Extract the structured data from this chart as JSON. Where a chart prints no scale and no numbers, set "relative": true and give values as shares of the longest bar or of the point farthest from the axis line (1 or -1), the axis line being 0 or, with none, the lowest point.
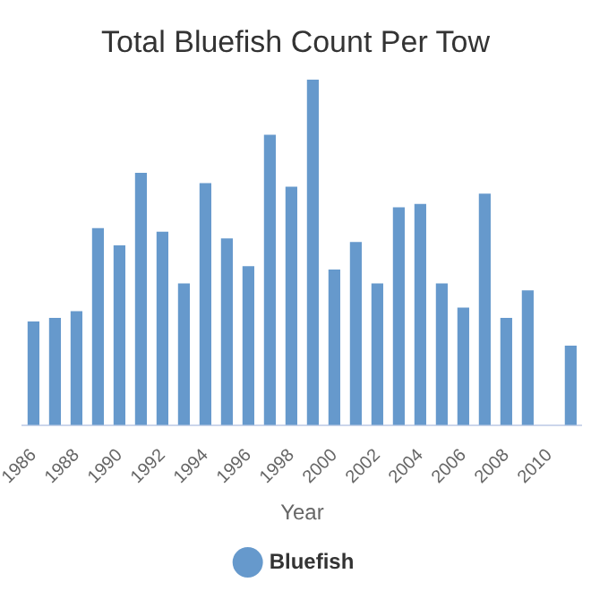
{
  "chart_data": {
    "type": "bar",
    "title": "Total Bluefish Count Per Tow",
    "xlabel": "Year",
    "relative": true,
    "categories": [
      "1986",
      null,
      "1988",
      null,
      "1990",
      null,
      "1992",
      null,
      "1994",
      null,
      "1996",
      null,
      "1998",
      null,
      "2000",
      null,
      "2002",
      null,
      "2004",
      null,
      "2006",
      null,
      "2008",
      null,
      "2010",
      null
    ],
    "series": [
      {
        "name": "Bluefish",
        "color": "#6699cc",
        "values": [
          0.3,
          0.31,
          0.33,
          0.57,
          0.52,
          0.73,
          0.56,
          0.41,
          0.7,
          0.54,
          0.46,
          0.84,
          0.69,
          1,
          0.45,
          0.53,
          0.41,
          0.63,
          0.64,
          0.41,
          0.34,
          0.67,
          0.31,
          0.39,
          null,
          0.23
        ]
      }
    ],
    "legend": "bottom"
  }
}
